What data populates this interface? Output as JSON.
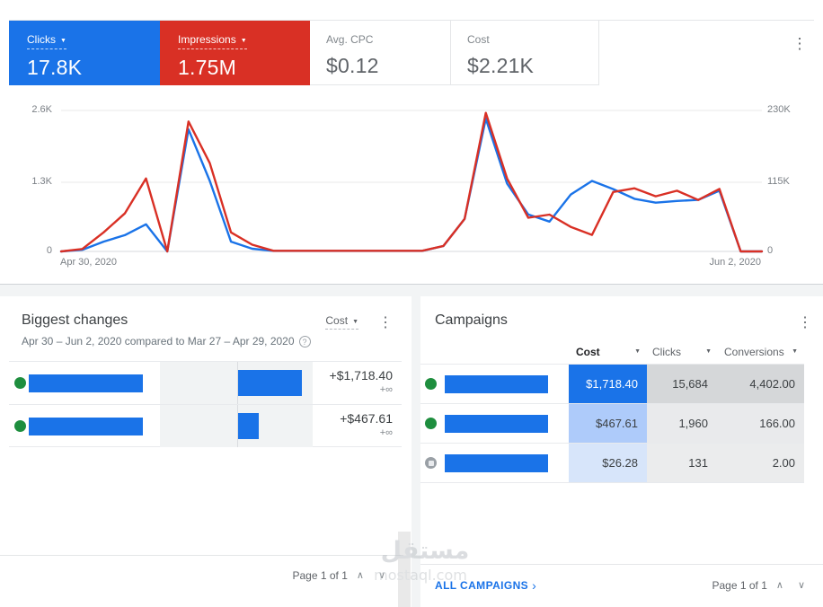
{
  "icons": {
    "dropdown_arrow": "▼",
    "kebab": "⋮",
    "help": "?",
    "chevron_up": "∧",
    "chevron_down": "∨",
    "link_chevron": "›",
    "plus_infinity": "+∞"
  },
  "scorecards": {
    "cards": [
      {
        "label": "Clicks",
        "value": "17.8K",
        "color": "#1a73e8"
      },
      {
        "label": "Impressions",
        "value": "1.75M",
        "color": "#d93025"
      },
      {
        "label": "Avg. CPC",
        "value": "$0.12"
      },
      {
        "label": "Cost",
        "value": "$2.21K"
      }
    ]
  },
  "chart_data": {
    "type": "line",
    "x_start_label": "Apr 30, 2020",
    "x_end_label": "Jun 2, 2020",
    "x_range_days": 34,
    "grid": true,
    "left_axis": {
      "ticks": [
        "0",
        "1.3K",
        "2.6K"
      ],
      "max": 2.6,
      "unit": "K clicks"
    },
    "right_axis": {
      "ticks": [
        "0",
        "115K",
        "230K"
      ],
      "max": 230,
      "unit": "K impressions"
    },
    "series": [
      {
        "name": "Clicks",
        "axis": "left",
        "color": "#1a73e8",
        "values": [
          0,
          0.03,
          0.18,
          0.3,
          0.5,
          0,
          2.25,
          1.3,
          0.18,
          0.05,
          0.01,
          0.01,
          0.01,
          0.01,
          0.01,
          0.01,
          0.01,
          0.01,
          0.1,
          0.6,
          2.45,
          1.25,
          0.68,
          0.55,
          1.05,
          1.3,
          1.15,
          0.97,
          0.9,
          0.93,
          0.95,
          1.12,
          0,
          0
        ]
      },
      {
        "name": "Impressions",
        "axis": "right",
        "color": "#d93025",
        "values": [
          0,
          4,
          31,
          62,
          119,
          0,
          212,
          144,
          31,
          11,
          1,
          1,
          1,
          1,
          1,
          1,
          1,
          1,
          9,
          53,
          226,
          119,
          55,
          60,
          40,
          27,
          97,
          103,
          90,
          99,
          84,
          102,
          0,
          0
        ]
      }
    ]
  },
  "biggest_changes": {
    "title": "Biggest changes",
    "subtitle": "Apr 30 – Jun 2, 2020 compared to Mar 27 – Apr 29, 2020",
    "metric_selector": "Cost",
    "rows": [
      {
        "status": "enabled",
        "change": "+$1,718.40",
        "change_pct": "+∞",
        "bar_width": "42%"
      },
      {
        "status": "enabled",
        "change": "+$467.61",
        "change_pct": "+∞",
        "bar_width": "13.5%"
      }
    ],
    "footer_page": "Page 1 of 1"
  },
  "campaigns": {
    "title": "Campaigns",
    "columns": {
      "cost": "Cost",
      "clicks": "Clicks",
      "conversions": "Conversions"
    },
    "rows": [
      {
        "status": "enabled",
        "cost": "$1,718.40",
        "clicks": "15,684",
        "conversions": "4,402.00",
        "cost_bg": "#1a73e8",
        "cost_color": "#ffffff",
        "metric_bg": "#d5d7d9"
      },
      {
        "status": "enabled",
        "cost": "$467.61",
        "clicks": "1,960",
        "conversions": "166.00",
        "cost_bg": "#aecbfa",
        "cost_color": "#3c4043",
        "metric_bg": "#e9eaec"
      },
      {
        "status": "paused",
        "cost": "$26.28",
        "clicks": "131",
        "conversions": "2.00",
        "cost_bg": "#d7e5fa",
        "cost_color": "#3c4043",
        "metric_bg": "#ebeced"
      }
    ],
    "link": "ALL CAMPAIGNS",
    "footer_page": "Page 1 of 1"
  },
  "watermark": {
    "arabic": "مستقل",
    "domain": "mostaql.com"
  }
}
